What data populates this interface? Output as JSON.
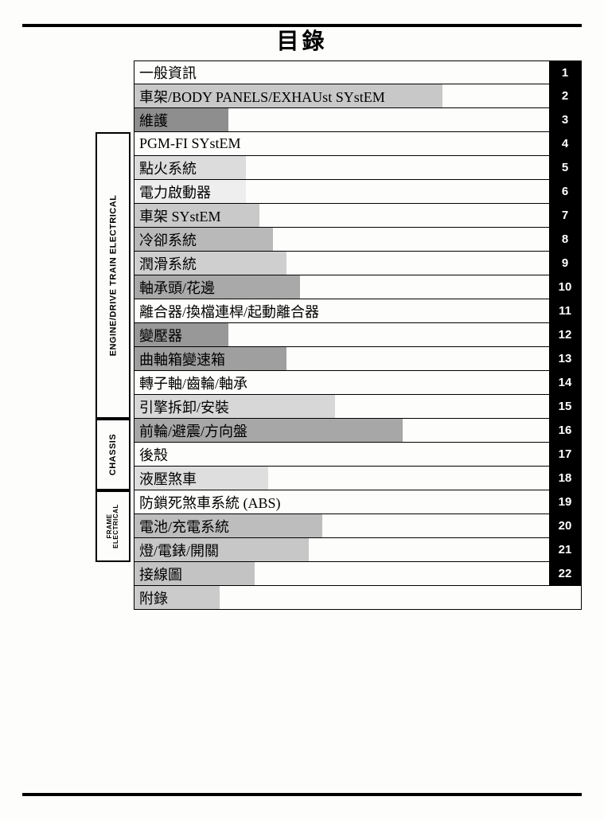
{
  "title": "目錄",
  "tab_bg": "#000000",
  "tab_fg": "#ffffff",
  "row_border": "#000000",
  "sections": [
    {
      "id": "engine",
      "label": "ENGINE/DRIVE TRAIN ELECTRICAL",
      "start": 3,
      "end": 14,
      "small": false
    },
    {
      "id": "chassis",
      "label": "CHASSIS",
      "start": 15,
      "end": 17,
      "small": false
    },
    {
      "id": "frame",
      "label": "FRAME ELECTRICAL",
      "start": 18,
      "end": 20,
      "small": true
    }
  ],
  "rows": [
    {
      "label": "一般資訊",
      "num": "1",
      "bar_color": "#ffffff",
      "bar_pct": 0
    },
    {
      "label": "車架/BODY PANELS/EXHAUst SYstEM",
      "num": "2",
      "bar_color": "#c8c8c8",
      "bar_pct": 69
    },
    {
      "label": "維護",
      "num": "3",
      "bar_color": "#8e8e8e",
      "bar_pct": 21
    },
    {
      "label": "PGM-FI SYstEM",
      "num": "4",
      "bar_color": "#ffffff",
      "bar_pct": 0
    },
    {
      "label": "點火系統",
      "num": "5",
      "bar_color": "#dcdcdc",
      "bar_pct": 25
    },
    {
      "label": "電力啟動器",
      "num": "6",
      "bar_color": "#eeeeee",
      "bar_pct": 25
    },
    {
      "label": "車架 SYstEM",
      "num": "7",
      "bar_color": "#c9c9c9",
      "bar_pct": 28
    },
    {
      "label": "冷卻系統",
      "num": "8",
      "bar_color": "#b9b9b9",
      "bar_pct": 31
    },
    {
      "label": "潤滑系統",
      "num": "9",
      "bar_color": "#cfcfcf",
      "bar_pct": 34
    },
    {
      "label": "軸承頭/花邊",
      "num": "10",
      "bar_color": "#a9a9a9",
      "bar_pct": 37
    },
    {
      "label": "離合器/換檔連桿/起動離合器",
      "num": "11",
      "bar_color": "#ffffff",
      "bar_pct": 0
    },
    {
      "label": "變壓器",
      "num": "12",
      "bar_color": "#989898",
      "bar_pct": 21
    },
    {
      "label": "曲軸箱變速箱",
      "num": "13",
      "bar_color": "#9f9f9f",
      "bar_pct": 34
    },
    {
      "label": "轉子軸/齒輪/軸承",
      "num": "14",
      "bar_color": "#ffffff",
      "bar_pct": 0
    },
    {
      "label": "引擎拆卸/安裝",
      "num": "15",
      "bar_color": "#d7d7d7",
      "bar_pct": 45
    },
    {
      "label": "前輪/避震/方向盤",
      "num": "16",
      "bar_color": "#a7a7a7",
      "bar_pct": 60
    },
    {
      "label": "後殼",
      "num": "17",
      "bar_color": "#ffffff",
      "bar_pct": 0
    },
    {
      "label": "液壓煞車",
      "num": "18",
      "bar_color": "#dedede",
      "bar_pct": 30
    },
    {
      "label": "防鎖死煞車系統 (ABS)",
      "num": "19",
      "bar_color": "#ffffff",
      "bar_pct": 0
    },
    {
      "label": "電池/充電系統",
      "num": "20",
      "bar_color": "#bdbdbd",
      "bar_pct": 42
    },
    {
      "label": "燈/電錶/開關",
      "num": "21",
      "bar_color": "#c7c7c7",
      "bar_pct": 39
    },
    {
      "label": "接線圖",
      "num": "22",
      "bar_color": "#c3c3c3",
      "bar_pct": 27
    },
    {
      "label": "附錄",
      "num": "",
      "bar_color": "#cbcbcb",
      "bar_pct": 19
    }
  ]
}
